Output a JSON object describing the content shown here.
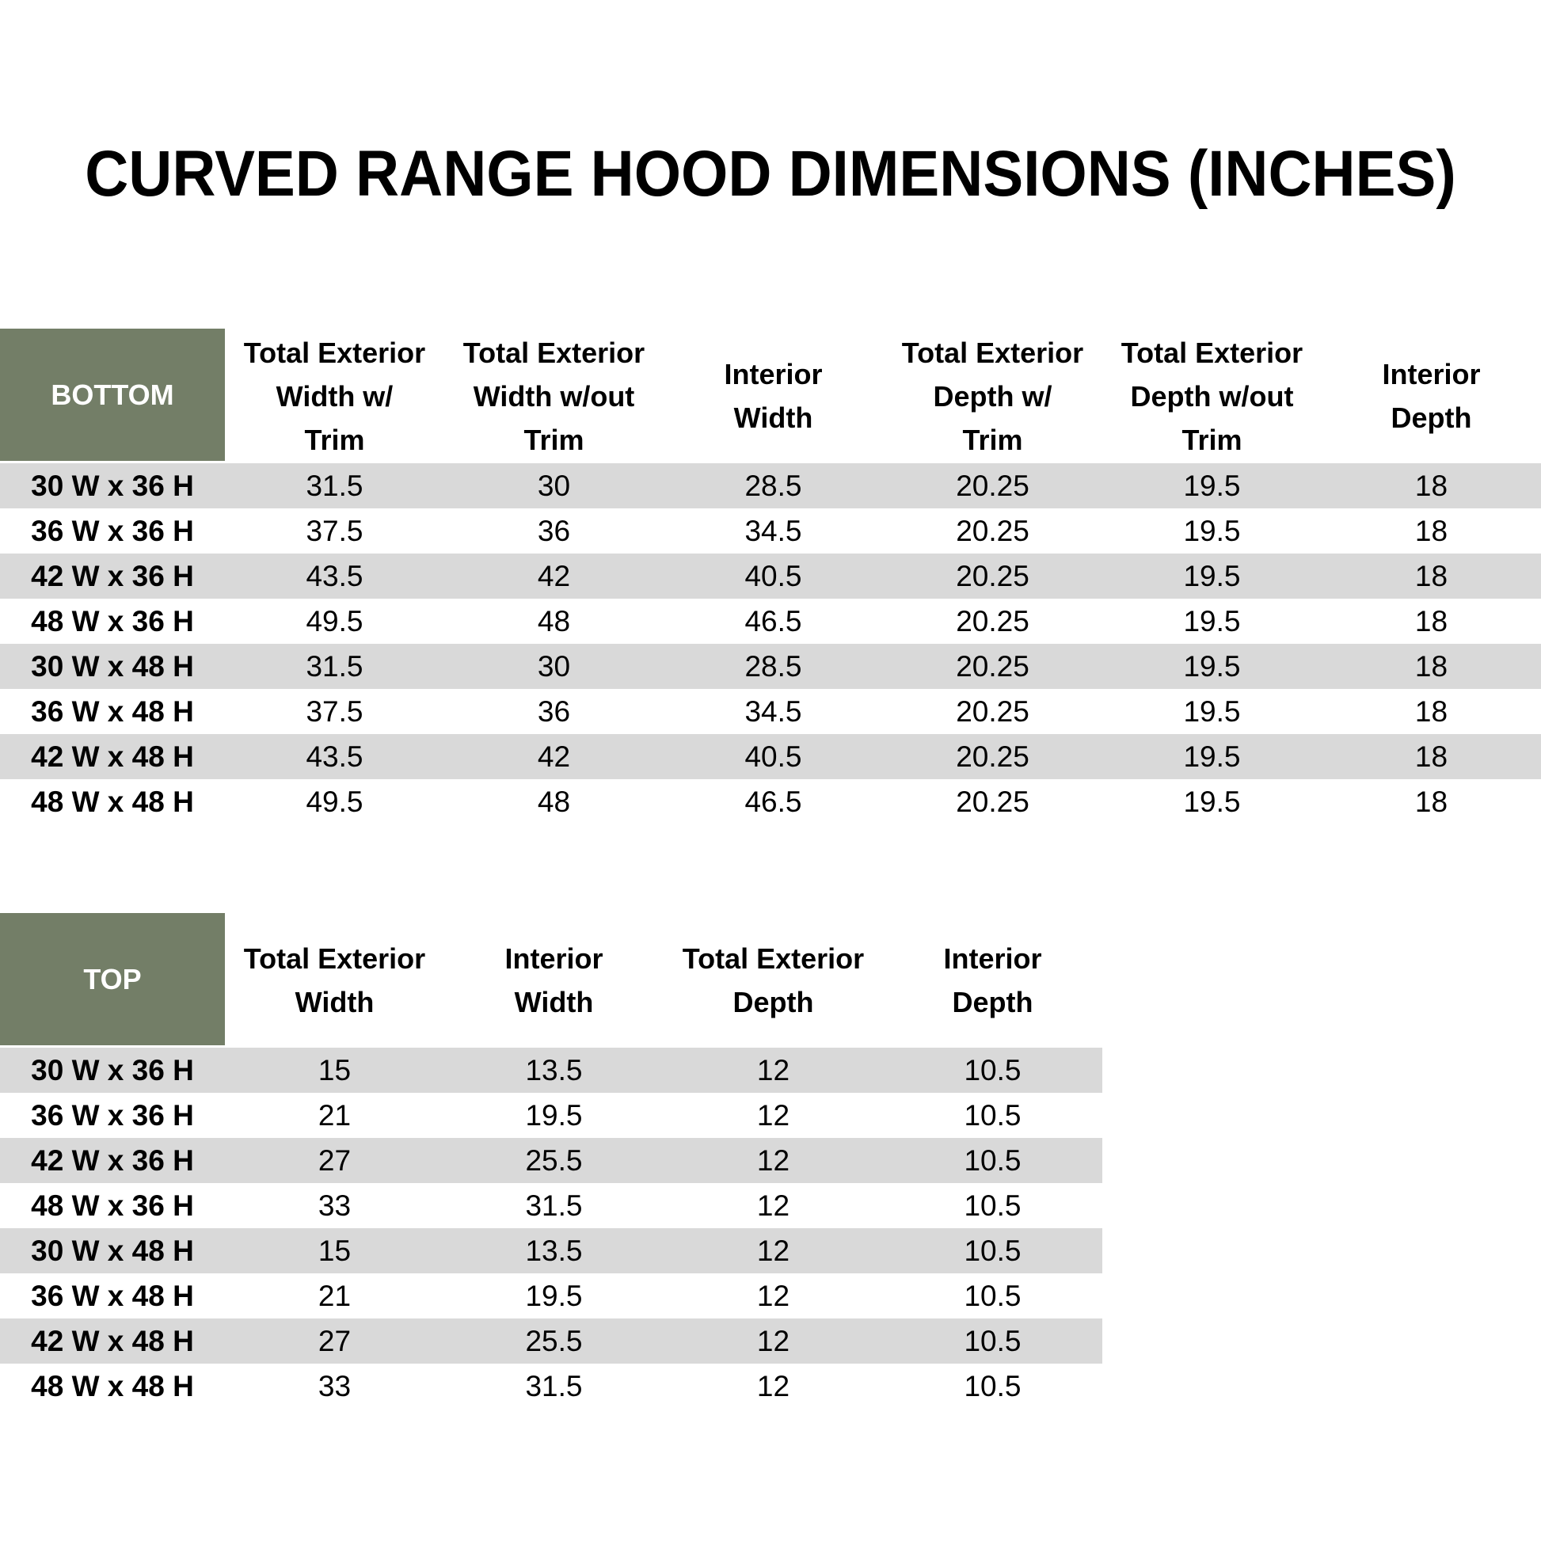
{
  "title": "CURVED RANGE HOOD DIMENSIONS (INCHES)",
  "colors": {
    "header_green": "#737E67",
    "stripe_gray": "#D9D9D9"
  },
  "bottom_table": {
    "corner_label": "BOTTOM",
    "columns": [
      "Total Exterior\nWidth w/\nTrim",
      "Total Exterior\nWidth w/out\nTrim",
      "Interior\nWidth",
      "Total Exterior\nDepth w/\nTrim",
      "Total Exterior\nDepth w/out\nTrim",
      "Interior\nDepth"
    ],
    "rows": [
      {
        "label": "30 W x 36 H",
        "values": [
          "31.5",
          "30",
          "28.5",
          "20.25",
          "19.5",
          "18"
        ]
      },
      {
        "label": "36 W x 36 H",
        "values": [
          "37.5",
          "36",
          "34.5",
          "20.25",
          "19.5",
          "18"
        ]
      },
      {
        "label": "42 W x 36 H",
        "values": [
          "43.5",
          "42",
          "40.5",
          "20.25",
          "19.5",
          "18"
        ]
      },
      {
        "label": "48 W x 36 H",
        "values": [
          "49.5",
          "48",
          "46.5",
          "20.25",
          "19.5",
          "18"
        ]
      },
      {
        "label": "30 W x 48 H",
        "values": [
          "31.5",
          "30",
          "28.5",
          "20.25",
          "19.5",
          "18"
        ]
      },
      {
        "label": "36 W x 48 H",
        "values": [
          "37.5",
          "36",
          "34.5",
          "20.25",
          "19.5",
          "18"
        ]
      },
      {
        "label": "42 W x 48 H",
        "values": [
          "43.5",
          "42",
          "40.5",
          "20.25",
          "19.5",
          "18"
        ]
      },
      {
        "label": "48 W x 48 H",
        "values": [
          "49.5",
          "48",
          "46.5",
          "20.25",
          "19.5",
          "18"
        ]
      }
    ]
  },
  "top_table": {
    "corner_label": "TOP",
    "columns": [
      "Total Exterior\nWidth",
      "Interior\nWidth",
      "Total Exterior\nDepth",
      "Interior\nDepth"
    ],
    "rows": [
      {
        "label": "30 W x 36 H",
        "values": [
          "15",
          "13.5",
          "12",
          "10.5"
        ]
      },
      {
        "label": "36 W x 36 H",
        "values": [
          "21",
          "19.5",
          "12",
          "10.5"
        ]
      },
      {
        "label": "42 W x 36 H",
        "values": [
          "27",
          "25.5",
          "12",
          "10.5"
        ]
      },
      {
        "label": "48 W x 36 H",
        "values": [
          "33",
          "31.5",
          "12",
          "10.5"
        ]
      },
      {
        "label": "30 W x 48 H",
        "values": [
          "15",
          "13.5",
          "12",
          "10.5"
        ]
      },
      {
        "label": "36 W x 48 H",
        "values": [
          "21",
          "19.5",
          "12",
          "10.5"
        ]
      },
      {
        "label": "42 W x 48 H",
        "values": [
          "27",
          "25.5",
          "12",
          "10.5"
        ]
      },
      {
        "label": "48 W x 48 H",
        "values": [
          "33",
          "31.5",
          "12",
          "10.5"
        ]
      }
    ]
  }
}
